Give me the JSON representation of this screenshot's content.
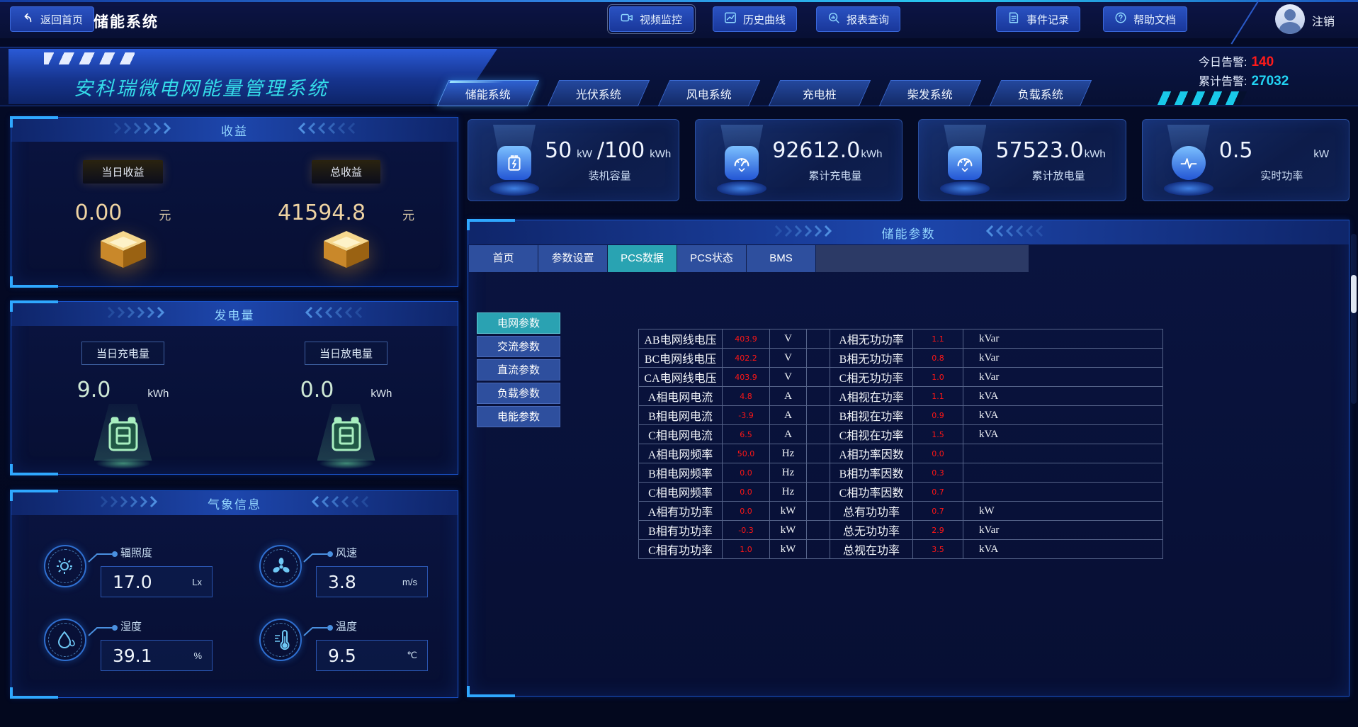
{
  "topbar": {
    "back_label": "返回首页",
    "page_title": "储能系统",
    "nav": [
      {
        "label": "视频监控",
        "icon": "video-monitor-icon"
      },
      {
        "label": "历史曲线",
        "icon": "history-curve-icon"
      },
      {
        "label": "报表查询",
        "icon": "report-query-icon"
      },
      {
        "label": "事件记录",
        "icon": "event-log-icon"
      },
      {
        "label": "帮助文档",
        "icon": "help-doc-icon"
      }
    ],
    "logout_label": "注销"
  },
  "header": {
    "banner_title": "安科瑞微电网能量管理系统",
    "system_tabs": [
      {
        "label": "储能系统",
        "active": true
      },
      {
        "label": "光伏系统",
        "active": false
      },
      {
        "label": "风电系统",
        "active": false
      },
      {
        "label": "充电桩",
        "active": false
      },
      {
        "label": "柴发系统",
        "active": false
      },
      {
        "label": "负载系统",
        "active": false
      }
    ],
    "alarm_today_label": "今日告警:",
    "alarm_today_value": "140",
    "alarm_total_label": "累计告警:",
    "alarm_total_value": "27032"
  },
  "income": {
    "title": "收益",
    "day": {
      "label": "当日收益",
      "value": "0.00",
      "unit": "元"
    },
    "total": {
      "label": "总收益",
      "value": "41594.8",
      "unit": "元"
    }
  },
  "generation": {
    "title": "发电量",
    "charge": {
      "label": "当日充电量",
      "value": "9.0",
      "unit": "kWh"
    },
    "discharge": {
      "label": "当日放电量",
      "value": "0.0",
      "unit": "kWh"
    }
  },
  "weather": {
    "title": "气象信息",
    "items": [
      {
        "label": "辐照度",
        "value": "17.0",
        "unit": "Lx",
        "icon": "sun-icon"
      },
      {
        "label": "风速",
        "value": "3.8",
        "unit": "m/s",
        "icon": "fan-icon"
      },
      {
        "label": "湿度",
        "value": "39.1",
        "unit": "%",
        "icon": "humidity-icon"
      },
      {
        "label": "温度",
        "value": "9.5",
        "unit": "℃",
        "icon": "thermometer-icon"
      }
    ]
  },
  "stats": {
    "cards": [
      {
        "value": "50",
        "unit": "kW",
        "value2": "/100",
        "unit2": "kWh",
        "label": "装机容量",
        "icon": "battery-bolt-icon"
      },
      {
        "value": "92612.0",
        "unit": "kWh",
        "label": "累计充电量",
        "icon": "voltmeter-icon"
      },
      {
        "value": "57523.0",
        "unit": "kWh",
        "label": "累计放电量",
        "icon": "voltmeter-icon"
      },
      {
        "value": "0.5",
        "unit": "kW",
        "label": "实时功率",
        "icon": "pulse-icon"
      }
    ]
  },
  "storage": {
    "panel_title": "储能参数",
    "tabs": [
      {
        "label": "首页",
        "active": false
      },
      {
        "label": "参数设置",
        "active": false
      },
      {
        "label": "PCS数据",
        "active": true
      },
      {
        "label": "PCS状态",
        "active": false
      },
      {
        "label": "BMS",
        "active": false
      }
    ],
    "subtabs": [
      {
        "label": "电网参数",
        "active": true
      },
      {
        "label": "交流参数",
        "active": false
      },
      {
        "label": "直流参数",
        "active": false
      },
      {
        "label": "负载参数",
        "active": false
      },
      {
        "label": "电能参数",
        "active": false
      }
    ],
    "table": {
      "rows": [
        {
          "n1": "AB电网线电压",
          "v1": "403.9",
          "u1": "V",
          "n2": "A相无功功率",
          "v2": "1.1",
          "u2": "kVar"
        },
        {
          "n1": "BC电网线电压",
          "v1": "402.2",
          "u1": "V",
          "n2": "B相无功功率",
          "v2": "0.8",
          "u2": "kVar"
        },
        {
          "n1": "CA电网线电压",
          "v1": "403.9",
          "u1": "V",
          "n2": "C相无功功率",
          "v2": "1.0",
          "u2": "kVar"
        },
        {
          "n1": "A相电网电流",
          "v1": "4.8",
          "u1": "A",
          "n2": "A相视在功率",
          "v2": "1.1",
          "u2": "kVA"
        },
        {
          "n1": "B相电网电流",
          "v1": "-3.9",
          "u1": "A",
          "n2": "B相视在功率",
          "v2": "0.9",
          "u2": "kVA"
        },
        {
          "n1": "C相电网电流",
          "v1": "6.5",
          "u1": "A",
          "n2": "C相视在功率",
          "v2": "1.5",
          "u2": "kVA"
        },
        {
          "n1": "A相电网频率",
          "v1": "50.0",
          "u1": "Hz",
          "n2": "A相功率因数",
          "v2": "0.0",
          "u2": ""
        },
        {
          "n1": "B相电网频率",
          "v1": "0.0",
          "u1": "Hz",
          "n2": "B相功率因数",
          "v2": "0.3",
          "u2": ""
        },
        {
          "n1": "C相电网频率",
          "v1": "0.0",
          "u1": "Hz",
          "n2": "C相功率因数",
          "v2": "0.7",
          "u2": ""
        },
        {
          "n1": "A相有功功率",
          "v1": "0.0",
          "u1": "kW",
          "n2": "总有功功率",
          "v2": "0.7",
          "u2": "kW"
        },
        {
          "n1": "B相有功功率",
          "v1": "-0.3",
          "u1": "kW",
          "n2": "总无功功率",
          "v2": "2.9",
          "u2": "kVar"
        },
        {
          "n1": "C相有功功率",
          "v1": "1.0",
          "u1": "kW",
          "n2": "总视在功率",
          "v2": "3.5",
          "u2": "kVA"
        }
      ]
    }
  }
}
